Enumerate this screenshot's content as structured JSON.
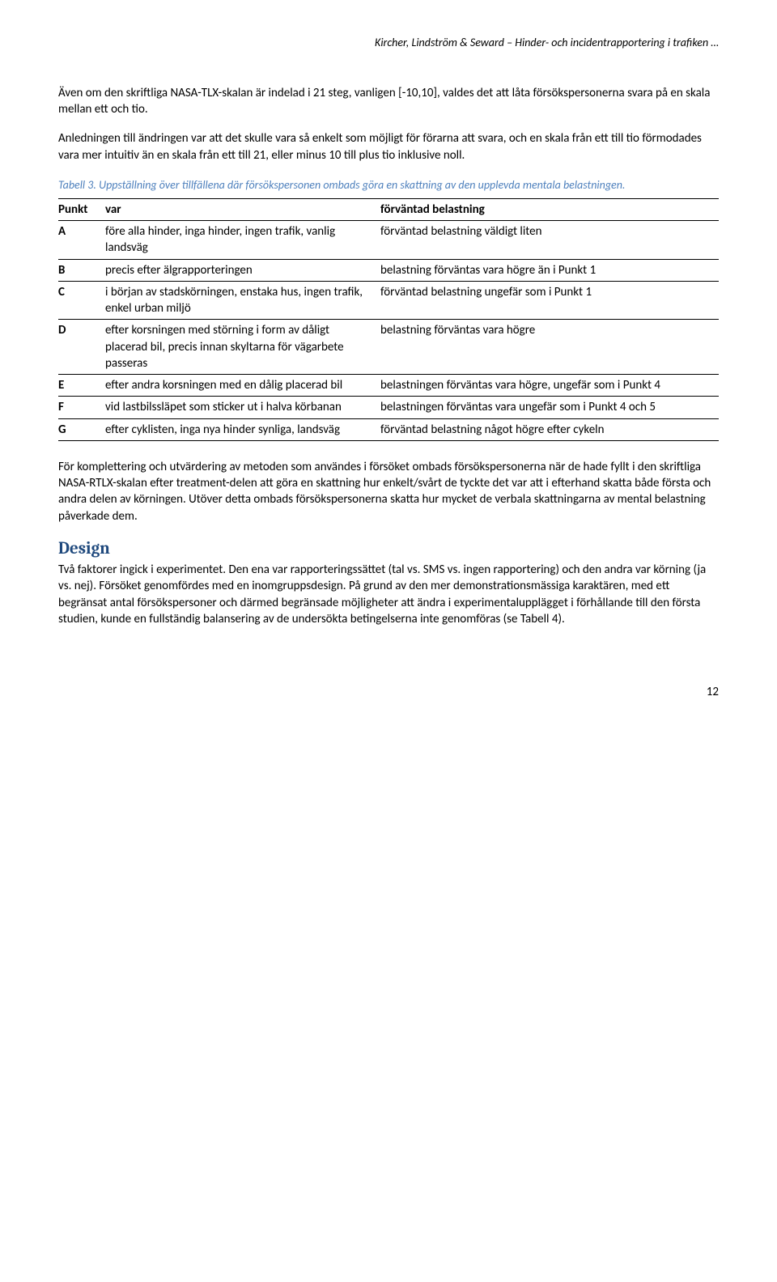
{
  "header": "Kircher, Lindström & Seward – Hinder- och incidentrapportering i trafiken …",
  "para1": "Även om den skriftliga NASA-TLX-skalan är indelad i 21 steg, vanligen [-10,10], valdes det att låta försökspersonerna svara på en skala mellan ett och tio.",
  "para2": "Anledningen till ändringen var att det skulle vara så enkelt som möjligt för förarna att svara, och en skala från ett till tio förmodades vara mer intuitiv än en skala från ett till 21, eller minus 10 till plus tio inklusive noll.",
  "table_caption": "Tabell 3. Uppställning över tillfällena där försökspersonen ombads göra en skattning av den upplevda mentala belastningen.",
  "table": {
    "headers": [
      "Punkt",
      "var",
      "förväntad belastning"
    ],
    "rows": [
      {
        "pk": "A",
        "var": "före alla hinder, inga hinder, ingen trafik, vanlig landsväg",
        "exp": "förväntad belastning väldigt liten"
      },
      {
        "pk": "B",
        "var": "precis efter älgrapporteringen",
        "exp": "belastning förväntas vara högre än i Punkt 1"
      },
      {
        "pk": "C",
        "var": "i början av stadskörningen, enstaka hus, ingen trafik, enkel urban miljö",
        "exp": "förväntad belastning ungefär som i Punkt 1"
      },
      {
        "pk": "D",
        "var": "efter korsningen med störning i form av dåligt placerad bil, precis innan skyltarna för vägarbete passeras",
        "exp": "belastning förväntas vara högre"
      },
      {
        "pk": "E",
        "var": "efter andra korsningen med en dålig placerad bil",
        "exp": "belastningen förväntas vara högre, ungefär som i Punkt 4"
      },
      {
        "pk": "F",
        "var": "vid lastbilssläpet som sticker ut i halva körbanan",
        "exp": "belastningen förväntas vara ungefär som i Punkt 4 och 5"
      },
      {
        "pk": "G",
        "var": "efter cyklisten, inga nya hinder synliga, landsväg",
        "exp": "förväntad belastning något högre efter cykeln"
      }
    ]
  },
  "para3": "För komplettering och utvärdering av metoden som användes i försöket ombads försökspersonerna när de hade fyllt i den skriftliga NASA-RTLX-skalan efter treatment-delen att göra en skattning hur enkelt/svårt de tyckte det var att i efterhand skatta både första och andra delen av körningen. Utöver detta ombads försökspersonerna skatta hur mycket de verbala skattningarna av mental belastning påverkade dem.",
  "design_heading": "Design",
  "para4": "Två faktorer ingick i experimentet. Den ena var rapporteringssättet (tal vs. SMS vs. ingen rapportering) och den andra var körning (ja vs. nej). Försöket genomfördes med en inomgruppsdesign. På grund av den mer demonstrationsmässiga karaktären, med ett begränsat antal försökspersoner och därmed begränsade möjligheter att ändra i experimentalupplägget i förhållande till den första studien, kunde en fullständig balansering av de undersökta betingelserna inte genomföras (se Tabell 4).",
  "page_number": "12"
}
